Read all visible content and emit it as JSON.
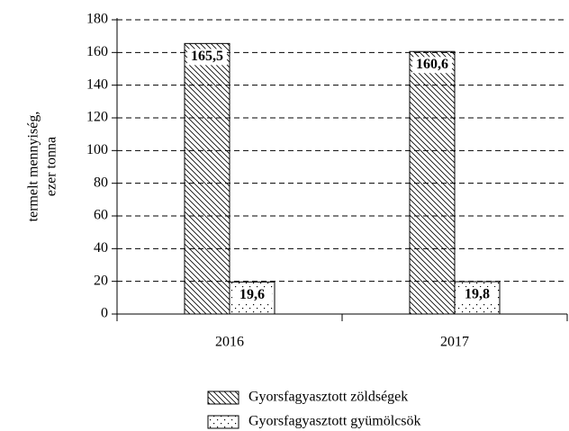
{
  "chart_data": {
    "type": "bar",
    "ylabel": [
      "termelt mennyiség,",
      "ezer tonna"
    ],
    "categories": [
      "2016",
      "2017"
    ],
    "series": [
      {
        "name": "Gyorsfagyasztott zöldségek",
        "pattern": "hatch",
        "color": "#000000",
        "values": [
          165.5,
          160.6
        ],
        "value_labels": [
          "165,5",
          "160,6"
        ]
      },
      {
        "name": "Gyorsfagyasztott gyümölcsök",
        "pattern": "dots",
        "color": "#000000",
        "values": [
          19.6,
          19.8
        ],
        "value_labels": [
          "19,6",
          "19,8"
        ]
      }
    ],
    "ylim": [
      0,
      180
    ],
    "yticks": [
      0,
      20,
      40,
      60,
      80,
      100,
      120,
      140,
      160,
      180
    ],
    "grid": true
  }
}
